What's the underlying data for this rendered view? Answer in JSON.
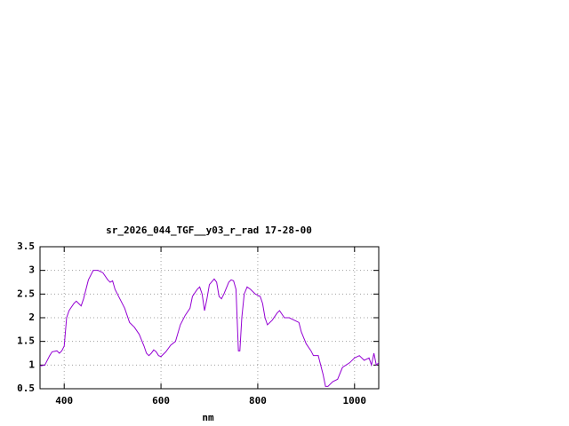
{
  "chart_data": {
    "type": "line",
    "title": "sr_2026_044_TGF__y03_r_rad 17-28-00",
    "x_label": "nm",
    "xlim": [
      350,
      1050
    ],
    "xticks": [
      400,
      600,
      800,
      1000
    ],
    "ylim": [
      0.5,
      3.5
    ],
    "yticks": [
      3.5,
      3,
      2.5,
      2,
      1.5,
      1,
      0.5
    ],
    "grid": true,
    "x": [
      350,
      360,
      370,
      375,
      385,
      390,
      395,
      400,
      405,
      410,
      420,
      425,
      430,
      435,
      440,
      450,
      460,
      470,
      480,
      490,
      495,
      500,
      505,
      515,
      525,
      530,
      535,
      545,
      555,
      565,
      570,
      575,
      580,
      585,
      590,
      595,
      600,
      610,
      620,
      630,
      640,
      650,
      660,
      665,
      675,
      680,
      685,
      690,
      695,
      700,
      710,
      715,
      720,
      725,
      730,
      740,
      745,
      750,
      755,
      760,
      763,
      767,
      772,
      778,
      785,
      795,
      805,
      810,
      815,
      820,
      830,
      840,
      845,
      855,
      865,
      875,
      885,
      890,
      900,
      910,
      915,
      925,
      935,
      940,
      945,
      955,
      965,
      975,
      990,
      1000,
      1010,
      1020,
      1030,
      1035,
      1040,
      1045,
      1050
    ],
    "series": [
      {
        "color": "#9400d3",
        "values": [
          0.98,
          1.0,
          1.2,
          1.28,
          1.3,
          1.25,
          1.3,
          1.4,
          2.0,
          2.15,
          2.3,
          2.35,
          2.3,
          2.25,
          2.4,
          2.8,
          3.0,
          3.0,
          2.95,
          2.8,
          2.75,
          2.78,
          2.6,
          2.4,
          2.2,
          2.05,
          1.9,
          1.8,
          1.65,
          1.4,
          1.25,
          1.2,
          1.25,
          1.32,
          1.28,
          1.2,
          1.18,
          1.28,
          1.42,
          1.5,
          1.85,
          2.05,
          2.2,
          2.45,
          2.6,
          2.65,
          2.5,
          2.15,
          2.4,
          2.7,
          2.82,
          2.75,
          2.45,
          2.4,
          2.5,
          2.75,
          2.8,
          2.78,
          2.6,
          1.3,
          1.3,
          2.0,
          2.5,
          2.65,
          2.6,
          2.5,
          2.45,
          2.3,
          2.0,
          1.85,
          1.95,
          2.1,
          2.15,
          2.0,
          2.0,
          1.95,
          1.9,
          1.7,
          1.45,
          1.3,
          1.2,
          1.2,
          0.8,
          0.55,
          0.55,
          0.65,
          0.7,
          0.95,
          1.05,
          1.15,
          1.2,
          1.1,
          1.15,
          1.0,
          1.25,
          1.0,
          1.05
        ]
      }
    ]
  }
}
